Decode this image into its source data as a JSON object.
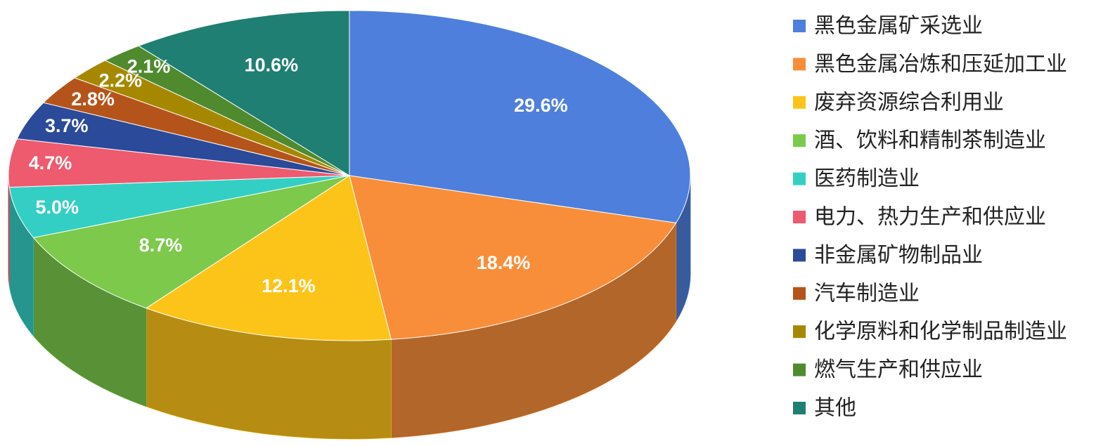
{
  "chart_data": {
    "type": "pie3d",
    "categories": [
      "黑色金属矿采选业",
      "黑色金属冶炼和压延加工业",
      "废弃资源综合利用业",
      "酒、饮料和精制茶制造业",
      "医药制造业",
      "电力、热力生产和供应业",
      "非金属矿物制品业",
      "汽车制造业",
      "化学原料和化学制品制造业",
      "燃气生产和供应业",
      "其他"
    ],
    "values": [
      29.6,
      18.4,
      12.1,
      8.7,
      5.0,
      4.7,
      3.7,
      2.8,
      2.2,
      2.1,
      10.6
    ],
    "value_labels": [
      "29.6%",
      "18.4%",
      "12.1%",
      "8.7%",
      "5.0%",
      "4.7%",
      "3.7%",
      "2.8%",
      "2.2%",
      "2.1%",
      "10.6%"
    ],
    "colors": [
      "#4e7fdc",
      "#f88e3a",
      "#fcc419",
      "#7cc94b",
      "#34cfc4",
      "#ee5a6e",
      "#2b4a9a",
      "#b5541a",
      "#a68800",
      "#4f8a2f",
      "#1f7f72"
    ],
    "legend": "right"
  }
}
